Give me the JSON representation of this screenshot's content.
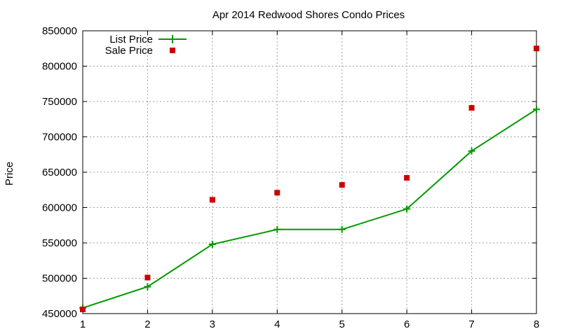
{
  "chart_data": {
    "type": "line",
    "title": "Apr 2014 Redwood Shores Condo Prices",
    "xlabel": "",
    "ylabel": "Price",
    "x": [
      1,
      2,
      3,
      4,
      5,
      6,
      7,
      8
    ],
    "xlim": [
      1,
      8
    ],
    "ylim": [
      450000,
      850000
    ],
    "yticks": [
      "450000",
      "500000",
      "550000",
      "600000",
      "650000",
      "700000",
      "750000",
      "800000",
      "850000"
    ],
    "xticks": [
      "1",
      "2",
      "3",
      "4",
      "5",
      "6",
      "7",
      "8"
    ],
    "grid": true,
    "legend_position": "top-left",
    "series": [
      {
        "name": "List Price",
        "style": "line-with-plus-markers",
        "color": "#009900",
        "values": [
          458000,
          488000,
          548000,
          569000,
          569000,
          598000,
          680000,
          739000
        ]
      },
      {
        "name": "Sale Price",
        "style": "square-markers",
        "color": "#cc0000",
        "values": [
          456000,
          501000,
          611000,
          621000,
          632000,
          642000,
          741000,
          825000
        ]
      }
    ]
  }
}
